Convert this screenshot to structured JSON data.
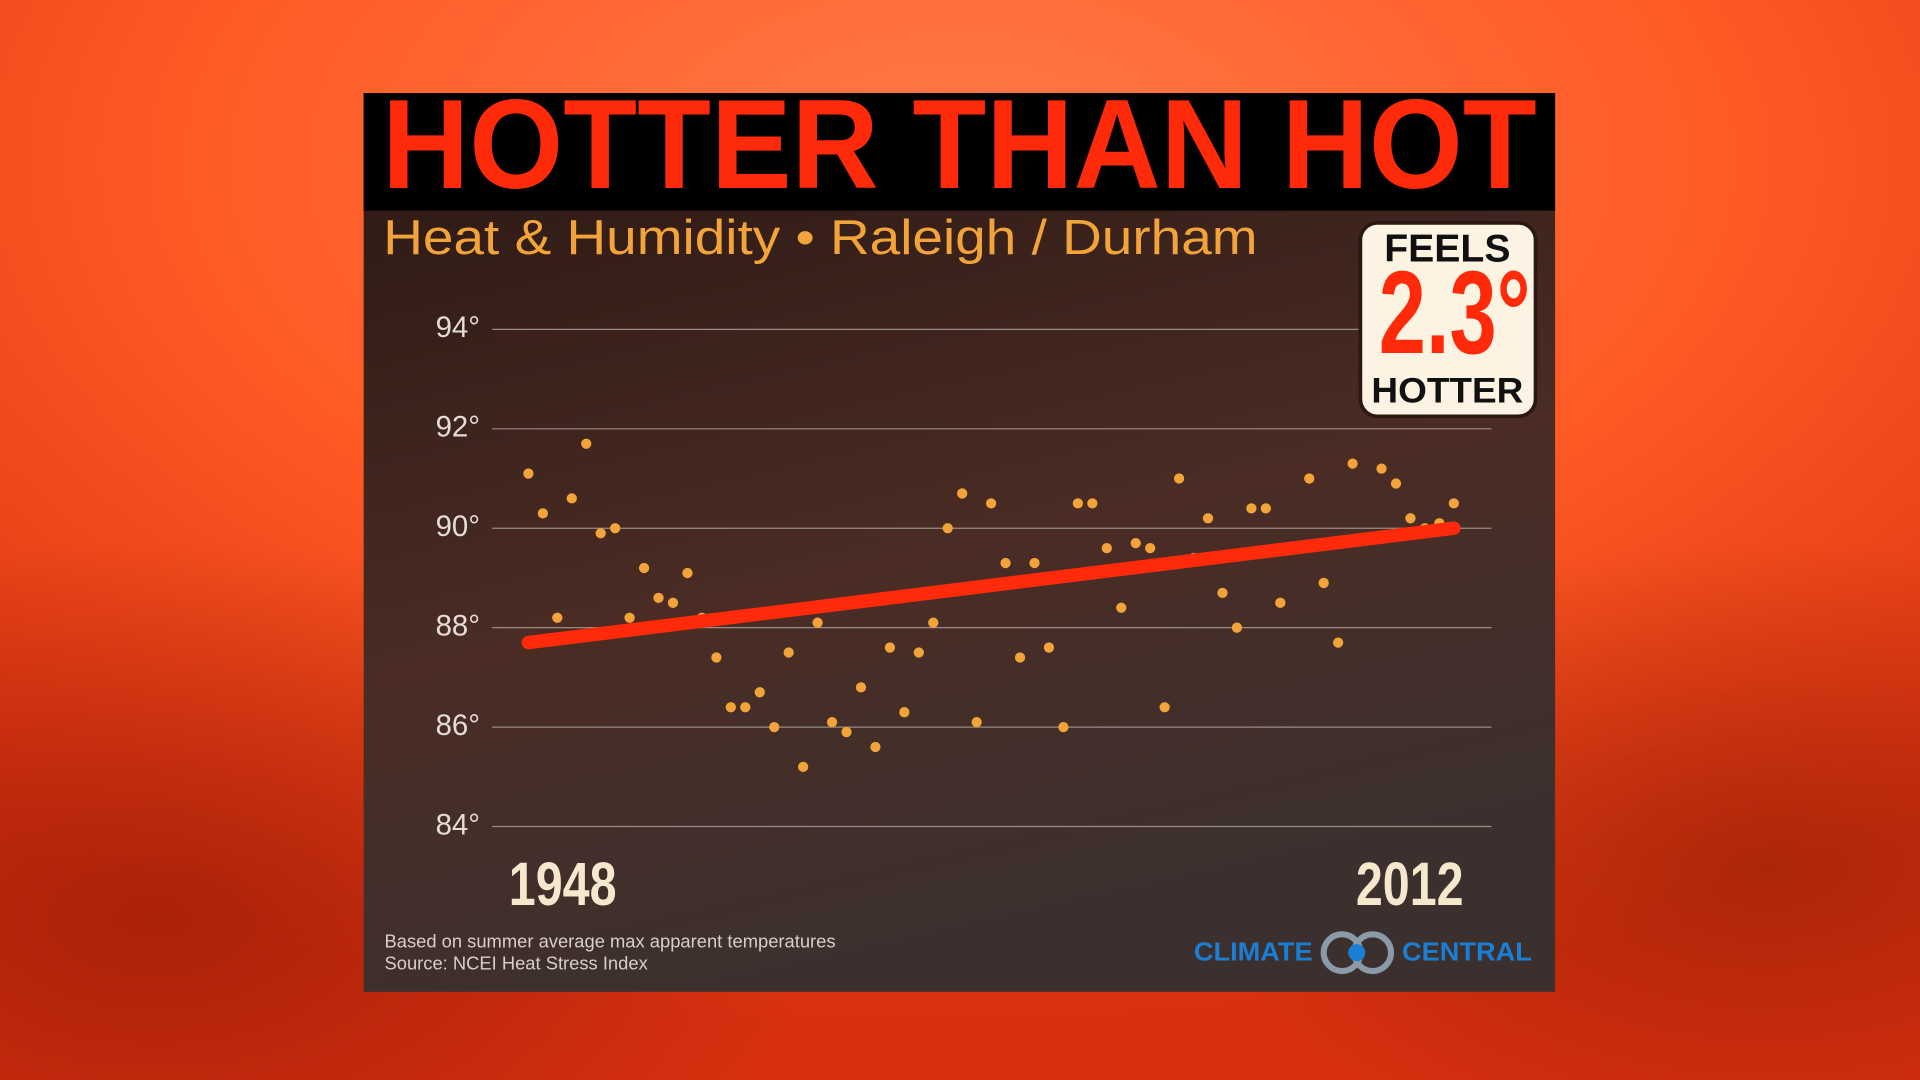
{
  "chart_data": {
    "type": "scatter",
    "title": "HOTTER THAN HOT",
    "subtitle": "Heat & Humidity • Raleigh / Durham",
    "callout": {
      "top": "FEELS",
      "value": "2.3°",
      "bottom": "HOTTER"
    },
    "x": [
      1948,
      1949,
      1950,
      1951,
      1952,
      1953,
      1954,
      1955,
      1956,
      1957,
      1958,
      1959,
      1960,
      1961,
      1962,
      1963,
      1964,
      1965,
      1966,
      1967,
      1968,
      1969,
      1970,
      1971,
      1972,
      1973,
      1974,
      1975,
      1976,
      1977,
      1978,
      1979,
      1980,
      1981,
      1982,
      1983,
      1984,
      1985,
      1986,
      1987,
      1988,
      1989,
      1990,
      1991,
      1992,
      1993,
      1994,
      1995,
      1996,
      1997,
      1998,
      1999,
      2000,
      2001,
      2002,
      2003,
      2004,
      2005,
      2006,
      2007,
      2008,
      2009,
      2010,
      2011,
      2012
    ],
    "values": [
      91.1,
      90.3,
      88.2,
      90.6,
      91.7,
      89.9,
      90.0,
      88.2,
      89.2,
      88.6,
      88.5,
      89.1,
      88.2,
      87.4,
      86.4,
      86.4,
      86.7,
      86.0,
      87.5,
      85.2,
      88.1,
      86.1,
      85.9,
      86.8,
      85.6,
      87.6,
      86.3,
      87.5,
      88.1,
      90.0,
      90.7,
      86.1,
      90.5,
      89.3,
      87.4,
      89.3,
      87.6,
      86.0,
      90.5,
      90.5,
      89.6,
      88.4,
      89.7,
      89.6,
      86.4,
      91.0,
      89.4,
      90.2,
      88.7,
      88.0,
      90.4,
      90.4,
      88.5,
      89.6,
      91.0,
      88.9,
      87.7,
      91.3,
      89.8,
      91.2,
      90.9,
      90.2,
      90.0,
      90.1,
      90.5
    ],
    "color": "#f2a33a",
    "trend": {
      "x": [
        1948,
        2012
      ],
      "values": [
        87.7,
        90.0
      ],
      "color": "#ff2a0a"
    },
    "xlim": [
      1945.5,
      2014.6
    ],
    "xticks": [
      1948,
      2012
    ],
    "ylim": [
      84,
      94
    ],
    "yticks": [
      {
        "value": 84,
        "label": "84°"
      },
      {
        "value": 86,
        "label": "86°"
      },
      {
        "value": 88,
        "label": "88°"
      },
      {
        "value": 90,
        "label": "90°"
      },
      {
        "value": 92,
        "label": "92°"
      },
      {
        "value": 94,
        "label": "94°"
      }
    ],
    "grid": true,
    "note": "Based on summer average max apparent temperatures",
    "source": "Source: NCEI  Heat Stress Index",
    "logo": {
      "left": "CLIMATE",
      "right": "CENTRAL"
    }
  }
}
